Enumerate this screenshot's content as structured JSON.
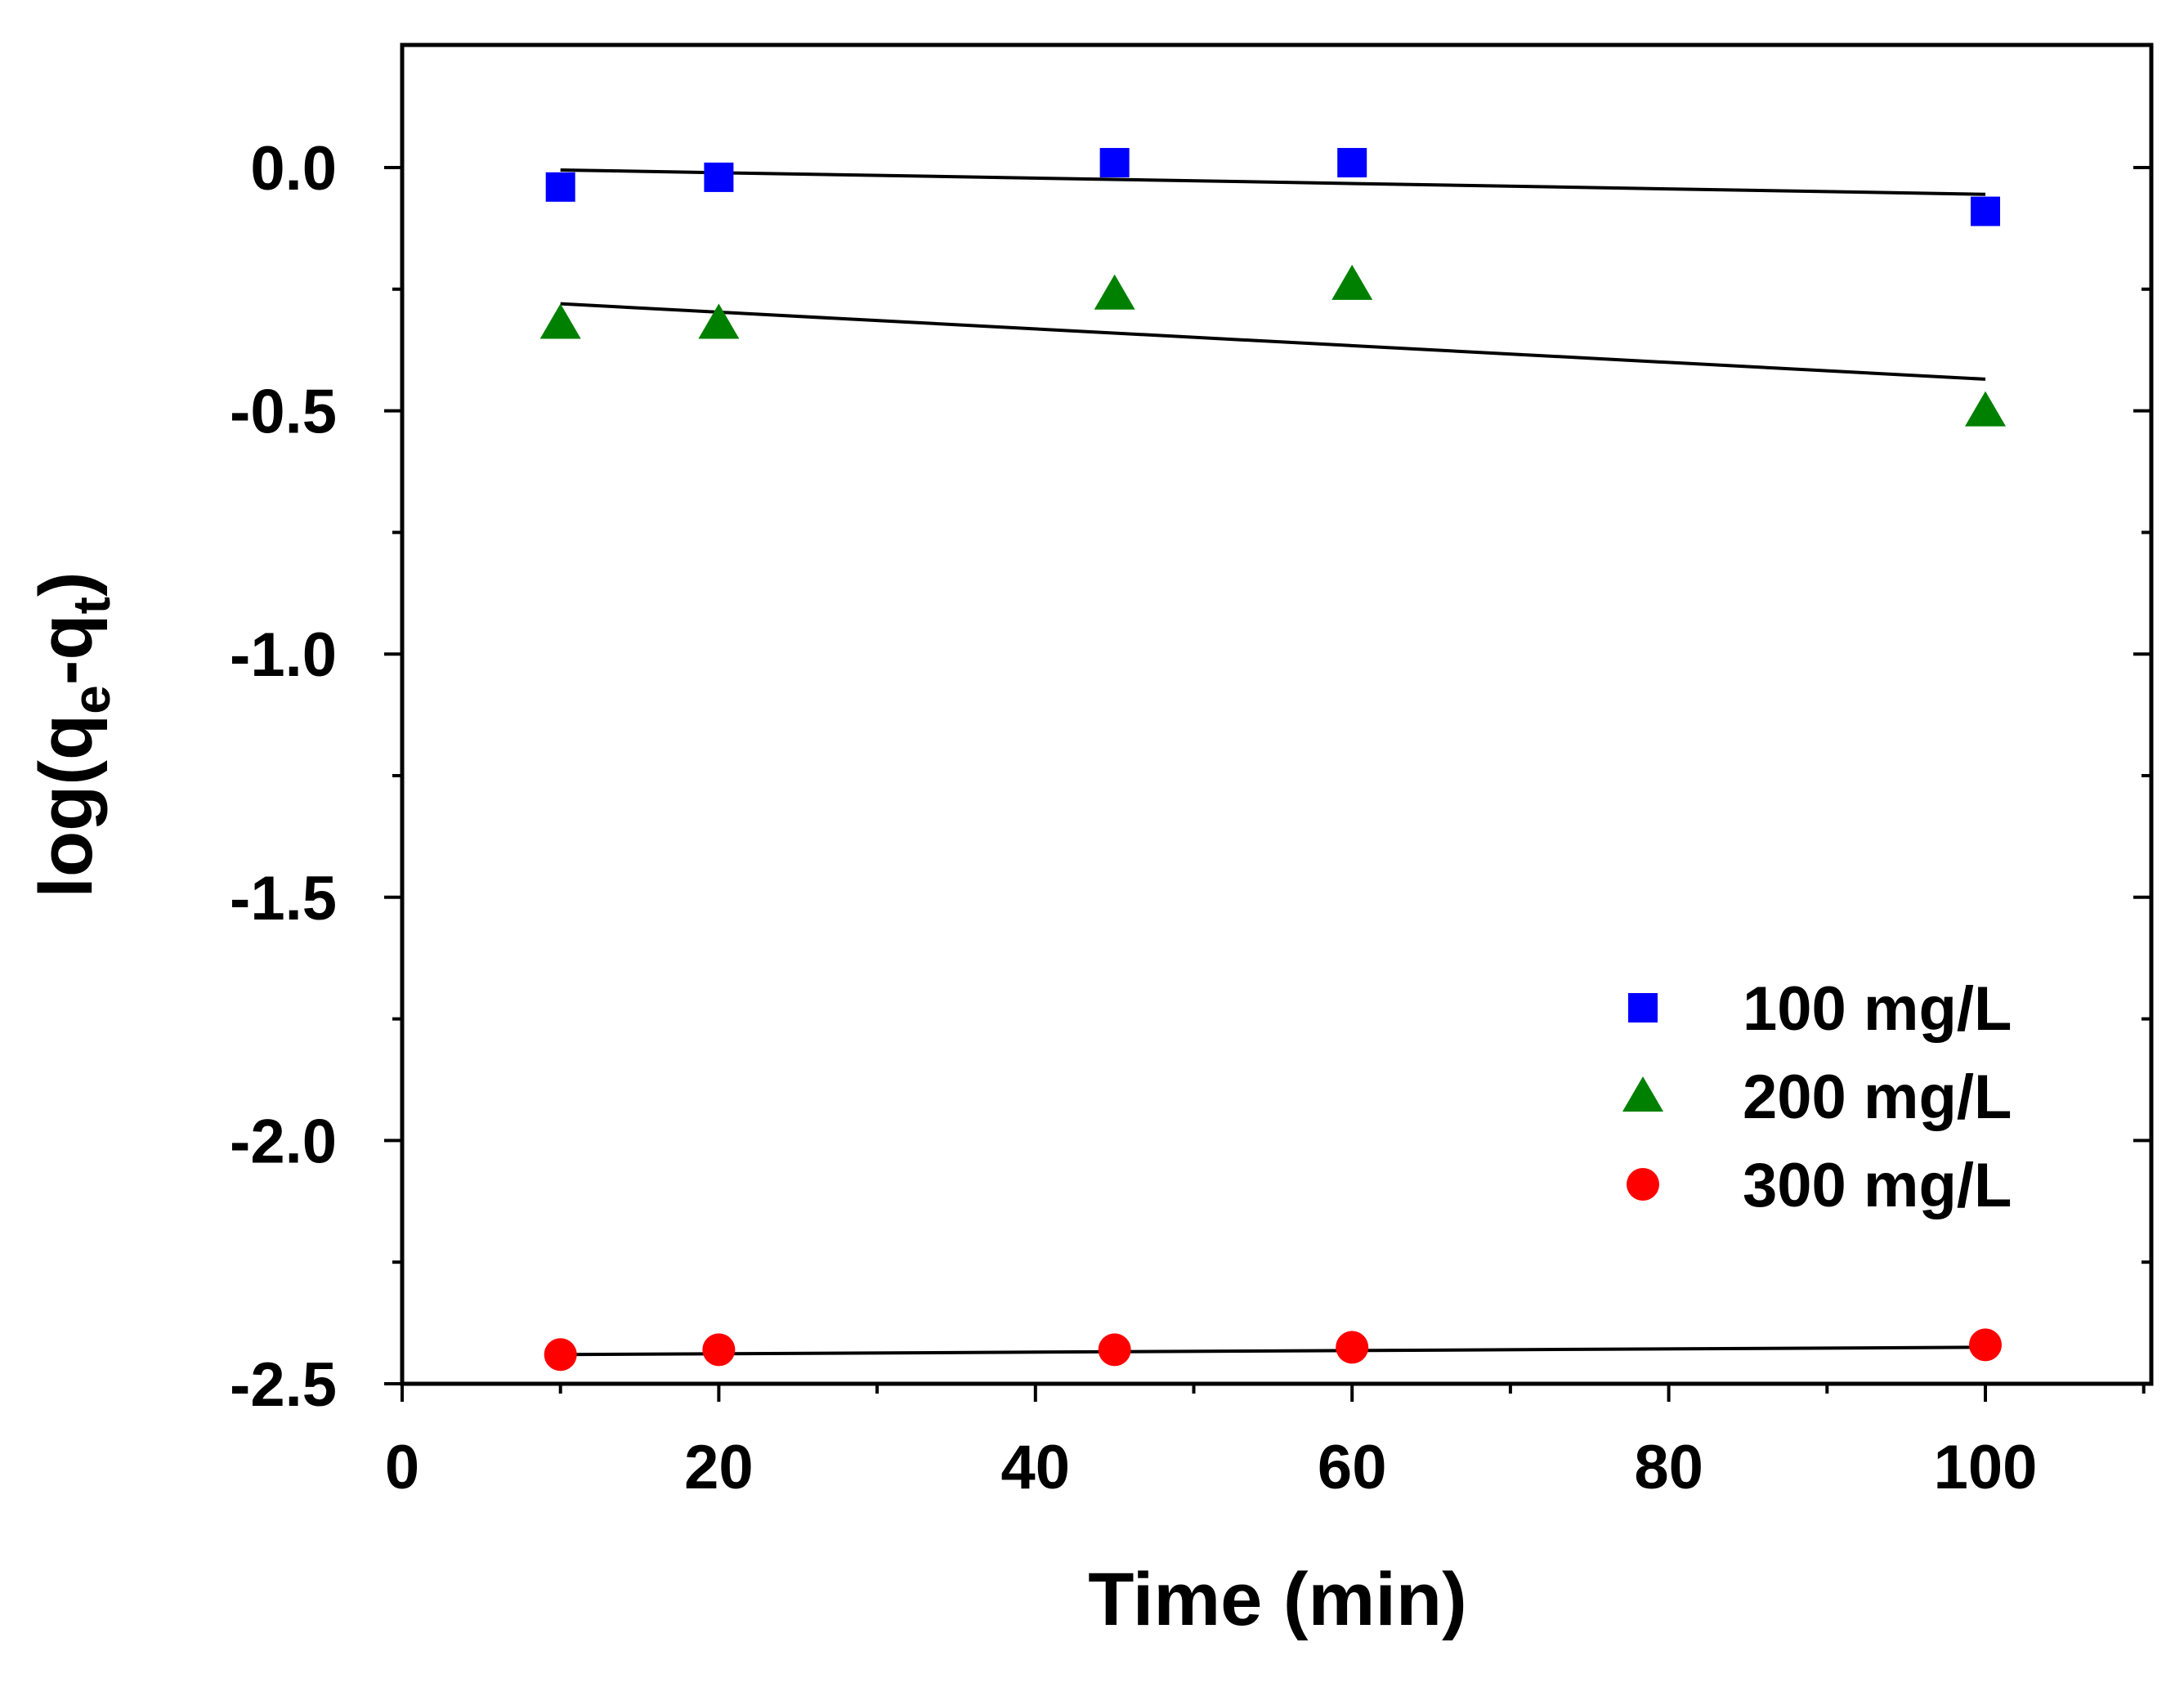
{
  "chart_data": {
    "type": "scatter",
    "title": "",
    "xlabel": "Time (min)",
    "ylabel": {
      "base": "log(q",
      "sub1": "e",
      "mid": "-q",
      "sub2": "t",
      "end": ")"
    },
    "xlim": [
      0,
      110
    ],
    "ylim": [
      -2.5,
      0.25
    ],
    "xticks": [
      0,
      20,
      40,
      60,
      80,
      100
    ],
    "xtick_labels": [
      "0",
      "20",
      "40",
      "60",
      "80",
      "100"
    ],
    "yticks": [
      0.0,
      -0.5,
      -1.0,
      -1.5,
      -2.0,
      -2.5
    ],
    "ytick_labels": [
      "0.0",
      "-0.5",
      "-1.0",
      "-1.5",
      "-2.0",
      "-2.5"
    ],
    "grid": false,
    "legend_position": "bottom-right",
    "series": [
      {
        "name": "100 mg/L",
        "marker": "square",
        "color": "#0000ff",
        "x": [
          10,
          20,
          45,
          60,
          100
        ],
        "y": [
          -0.04,
          -0.02,
          0.01,
          0.01,
          -0.09
        ],
        "fit": {
          "x": [
            10,
            100
          ],
          "y": [
            -0.005,
            -0.055
          ]
        }
      },
      {
        "name": "200 mg/L",
        "marker": "triangle",
        "color": "#008000",
        "x": [
          10,
          20,
          45,
          60,
          100
        ],
        "y": [
          -0.32,
          -0.32,
          -0.26,
          -0.24,
          -0.5
        ],
        "fit": {
          "x": [
            10,
            100
          ],
          "y": [
            -0.28,
            -0.435
          ]
        }
      },
      {
        "name": "300 mg/L",
        "marker": "circle",
        "color": "#ff0000",
        "x": [
          10,
          20,
          45,
          60,
          100
        ],
        "y": [
          -2.44,
          -2.43,
          -2.43,
          -2.425,
          -2.42
        ],
        "fit": {
          "x": [
            10,
            100
          ],
          "y": [
            -2.44,
            -2.425
          ]
        }
      }
    ]
  }
}
